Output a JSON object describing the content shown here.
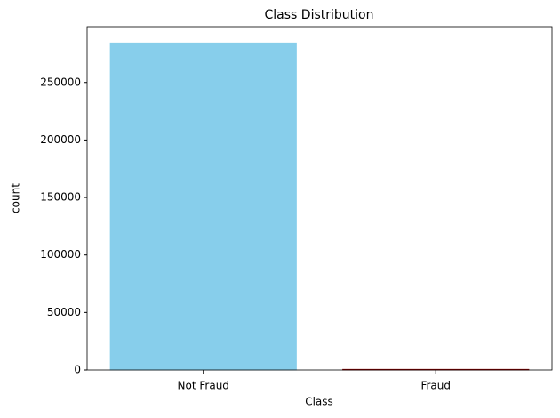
{
  "chart_data": {
    "type": "bar",
    "title": "Class Distribution",
    "x_label": "Class",
    "y_label": "count",
    "categories": [
      "Not Fraud",
      "Fraud"
    ],
    "values": [
      284315,
      492
    ],
    "colors": [
      "#87ceeb",
      "#8b0000"
    ],
    "ylim": [
      0,
      298531
    ],
    "yticks": [
      0,
      50000,
      100000,
      150000,
      200000,
      250000
    ],
    "grid": false
  }
}
